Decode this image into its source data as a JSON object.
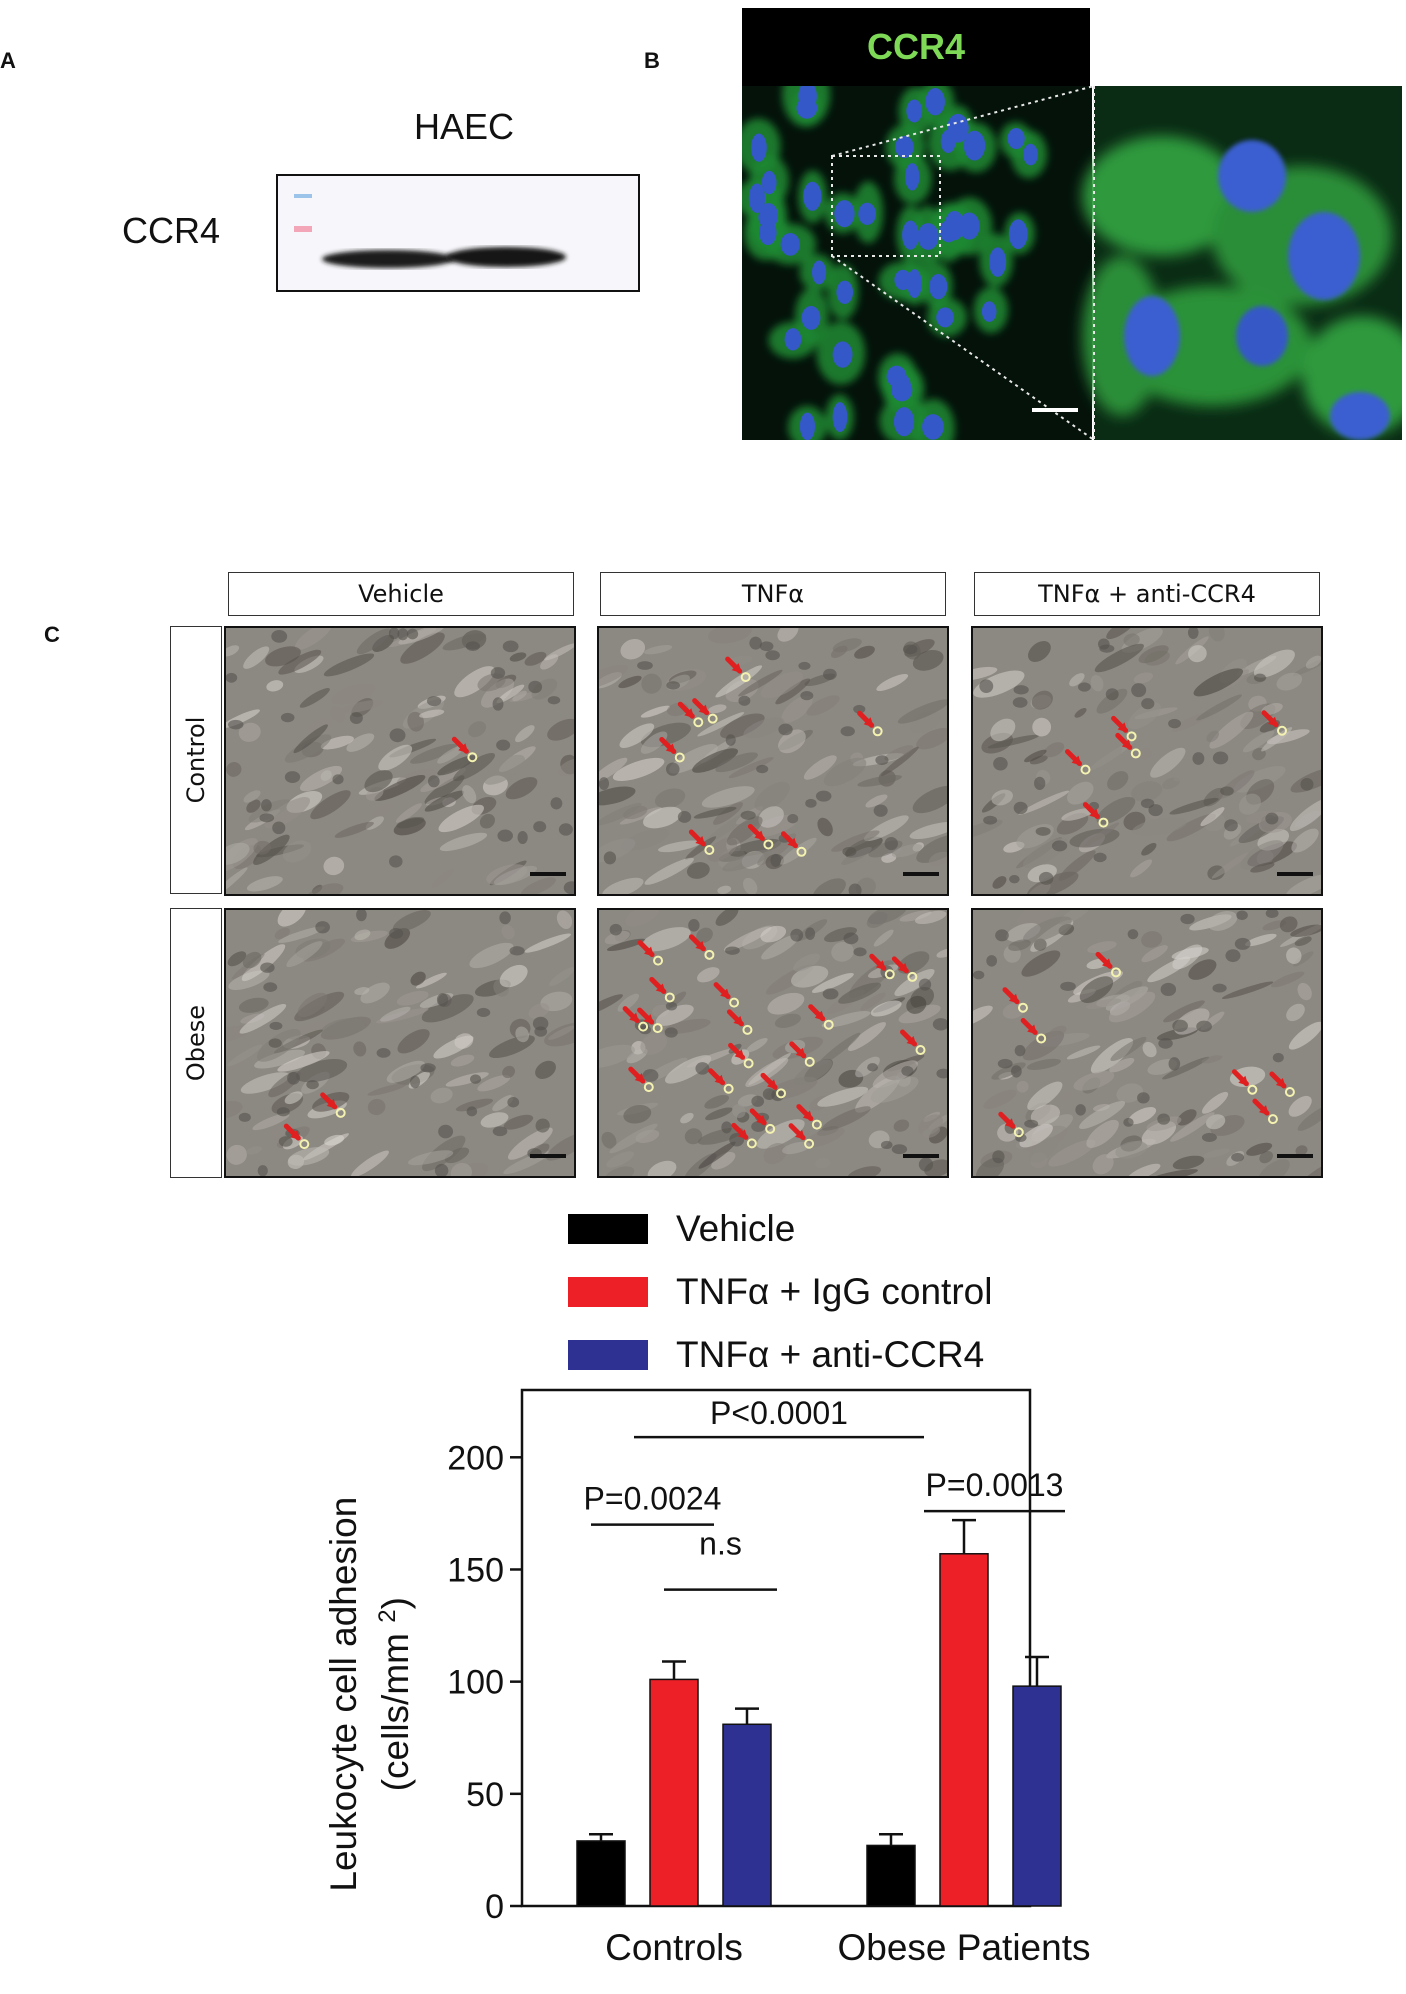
{
  "panels": {
    "a": {
      "letter": "A",
      "cell_line_label": "HAEC",
      "band_label": "CCR4"
    },
    "b": {
      "letter": "B",
      "stain_label": "CCR4",
      "stain_color": "#7ed957"
    },
    "c": {
      "letter": "C",
      "columns": [
        "Vehicle",
        "TNFα",
        "TNFα + anti-CCR4"
      ],
      "rows": [
        "Control",
        "Obese"
      ]
    }
  },
  "chart_data": {
    "type": "bar",
    "categories": [
      "Controls",
      "Obese Patients"
    ],
    "series": [
      {
        "name": "Vehicle",
        "color": "#000000",
        "values": [
          29,
          27
        ],
        "errors": [
          3,
          5
        ]
      },
      {
        "name": "TNFα + IgG control",
        "color": "#ee2027",
        "values": [
          101,
          157
        ],
        "errors": [
          8,
          15
        ]
      },
      {
        "name": "TNFα + anti-CCR4",
        "color": "#2e3192",
        "values": [
          81,
          98
        ],
        "errors": [
          7,
          13
        ]
      }
    ],
    "ylabel_line1": "Leukocyte cell adhesion",
    "ylabel_line2": "(cells/mm",
    "ylabel_sup": "2",
    "ylabel_close": ")",
    "ylim": [
      0,
      230
    ],
    "yticks": [
      "0",
      "50",
      "100",
      "150",
      "200"
    ],
    "ytick_values": [
      0,
      50,
      100,
      150,
      200
    ],
    "legend_position": "top",
    "annotations": [
      "P<0.0001",
      "P=0.0024",
      "n.s",
      "P=0.0013"
    ]
  }
}
